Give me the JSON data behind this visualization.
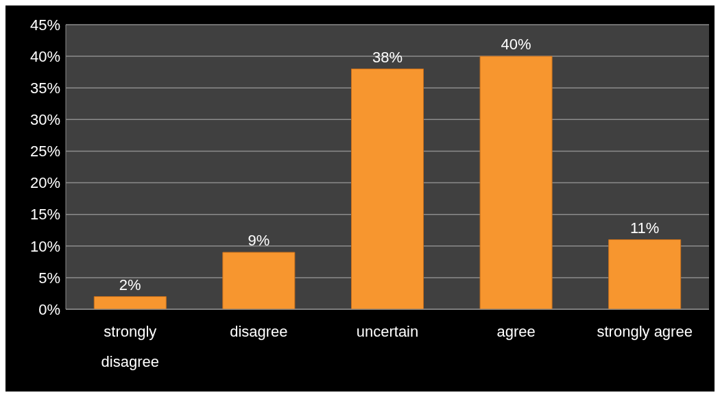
{
  "chart_data": {
    "type": "bar",
    "categories": [
      "strongly disagree",
      "disagree",
      "uncertain",
      "agree",
      "strongly agree"
    ],
    "values": [
      2,
      9,
      38,
      40,
      11
    ],
    "value_labels": [
      "2%",
      "9%",
      "38%",
      "40%",
      "11%"
    ],
    "color": "#f7962f",
    "ylim": [
      0,
      45
    ],
    "yticks": [
      {
        "value": 0,
        "label": "0%"
      },
      {
        "value": 5,
        "label": "5%"
      },
      {
        "value": 10,
        "label": "10%"
      },
      {
        "value": 15,
        "label": "15%"
      },
      {
        "value": 20,
        "label": "20%"
      },
      {
        "value": 25,
        "label": "25%"
      },
      {
        "value": 30,
        "label": "30%"
      },
      {
        "value": 35,
        "label": "35%"
      },
      {
        "value": 40,
        "label": "40%"
      },
      {
        "value": 45,
        "label": "45%"
      }
    ],
    "grid": "y",
    "legend": false
  }
}
